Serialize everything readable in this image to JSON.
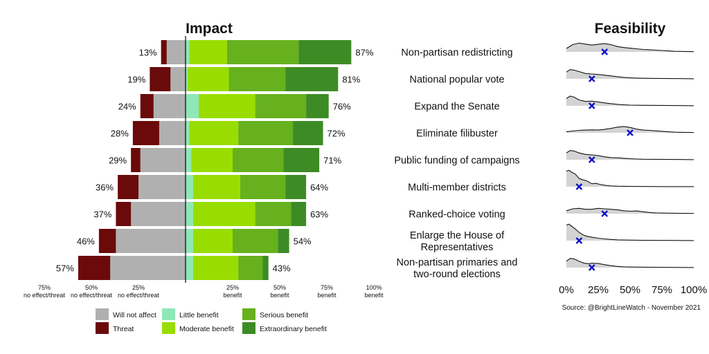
{
  "chart_data": {
    "type": "bar",
    "impact_title": "Impact",
    "feasibility_title": "Feasibility",
    "source": "Source: @BrightLineWatch - November 2021",
    "categories": [
      "Non-partisan redistricting",
      "National popular vote",
      "Expand the Senate",
      "Eliminate filibuster",
      "Public funding of campaigns",
      "Multi-member districts",
      "Ranked-choice voting",
      "Enlarge the House of Representatives",
      "Non-partisan primaries and two-round elections"
    ],
    "category_lines": [
      [
        "Non-partisan redistricting"
      ],
      [
        "National popular vote"
      ],
      [
        "Expand the Senate"
      ],
      [
        "Eliminate filibuster"
      ],
      [
        "Public funding of campaigns"
      ],
      [
        "Multi-member districts"
      ],
      [
        "Ranked-choice voting"
      ],
      [
        "Enlarge the House of",
        "Representatives"
      ],
      [
        "Non-partisan primaries and",
        "two-round elections"
      ]
    ],
    "left_series": [
      {
        "name": "Will not affect",
        "color": "#b0b0b0",
        "values": [
          10,
          8,
          17,
          14,
          24,
          25,
          29,
          37,
          40
        ]
      },
      {
        "name": "Threat",
        "color": "#6b0a0a",
        "values": [
          3,
          11,
          7,
          14,
          5,
          11,
          8,
          9,
          17
        ]
      }
    ],
    "right_series": [
      {
        "name": "Little benefit",
        "color": "#8ee8b8",
        "values": [
          2,
          1,
          7,
          2,
          3,
          4,
          4,
          4,
          4
        ]
      },
      {
        "name": "Moderate benefit",
        "color": "#99dd00",
        "values": [
          20,
          22,
          30,
          26,
          22,
          25,
          33,
          21,
          24
        ]
      },
      {
        "name": "Serious benefit",
        "color": "#66b11d",
        "values": [
          38,
          30,
          27,
          29,
          27,
          24,
          19,
          24,
          13
        ]
      },
      {
        "name": "Extraordinary benefit",
        "color": "#3d8b25",
        "values": [
          28,
          28,
          12,
          16,
          19,
          11,
          8,
          6,
          3
        ]
      }
    ],
    "threat_totals": [
      "13%",
      "19%",
      "24%",
      "28%",
      "29%",
      "36%",
      "37%",
      "46%",
      "57%"
    ],
    "benefit_totals": [
      "87%",
      "81%",
      "76%",
      "72%",
      "71%",
      "64%",
      "63%",
      "54%",
      "43%"
    ],
    "impact_axis": {
      "xlim": [
        -75,
        100
      ],
      "ticks": [
        {
          "value": -75,
          "line1": "75%",
          "line2": "no effect/threat"
        },
        {
          "value": -50,
          "line1": "50%",
          "line2": "no effect/threat"
        },
        {
          "value": -25,
          "line1": "25%",
          "line2": "no effect/threat"
        },
        {
          "value": 25,
          "line1": "25%",
          "line2": "benefit"
        },
        {
          "value": 50,
          "line1": "50%",
          "line2": "benefit"
        },
        {
          "value": 75,
          "line1": "75%",
          "line2": "benefit"
        },
        {
          "value": 100,
          "line1": "100%",
          "line2": "benefit"
        }
      ]
    },
    "feasibility_axis": {
      "xlim": [
        0,
        100
      ],
      "ticks": [
        "0%",
        "25%",
        "50%",
        "75%",
        "100%"
      ],
      "tick_values": [
        0,
        25,
        50,
        75,
        100
      ]
    },
    "feasibility_means": [
      30,
      20,
      20,
      50,
      20,
      10,
      30,
      10,
      20
    ],
    "feasibility_densities": [
      [
        [
          0,
          0.35
        ],
        [
          5,
          0.75
        ],
        [
          10,
          0.9
        ],
        [
          15,
          0.8
        ],
        [
          20,
          0.7
        ],
        [
          25,
          0.78
        ],
        [
          30,
          0.85
        ],
        [
          35,
          0.75
        ],
        [
          40,
          0.55
        ],
        [
          45,
          0.45
        ],
        [
          50,
          0.38
        ],
        [
          55,
          0.32
        ],
        [
          60,
          0.25
        ],
        [
          65,
          0.22
        ],
        [
          70,
          0.18
        ],
        [
          75,
          0.14
        ],
        [
          80,
          0.1
        ],
        [
          85,
          0.06
        ],
        [
          90,
          0.04
        ],
        [
          95,
          0.03
        ],
        [
          100,
          0.02
        ]
      ],
      [
        [
          0,
          0.7
        ],
        [
          3,
          0.95
        ],
        [
          6,
          0.9
        ],
        [
          10,
          0.75
        ],
        [
          15,
          0.55
        ],
        [
          20,
          0.5
        ],
        [
          25,
          0.45
        ],
        [
          30,
          0.38
        ],
        [
          35,
          0.3
        ],
        [
          40,
          0.22
        ],
        [
          45,
          0.15
        ],
        [
          50,
          0.1
        ],
        [
          55,
          0.08
        ],
        [
          60,
          0.06
        ],
        [
          70,
          0.04
        ],
        [
          80,
          0.03
        ],
        [
          90,
          0.02
        ],
        [
          100,
          0.01
        ]
      ],
      [
        [
          0,
          0.75
        ],
        [
          3,
          1.0
        ],
        [
          6,
          0.9
        ],
        [
          10,
          0.6
        ],
        [
          15,
          0.45
        ],
        [
          20,
          0.48
        ],
        [
          25,
          0.4
        ],
        [
          30,
          0.3
        ],
        [
          35,
          0.22
        ],
        [
          40,
          0.15
        ],
        [
          45,
          0.1
        ],
        [
          50,
          0.07
        ],
        [
          60,
          0.05
        ],
        [
          70,
          0.04
        ],
        [
          80,
          0.03
        ],
        [
          90,
          0.02
        ],
        [
          100,
          0.01
        ]
      ],
      [
        [
          0,
          0.1
        ],
        [
          5,
          0.18
        ],
        [
          10,
          0.25
        ],
        [
          15,
          0.28
        ],
        [
          20,
          0.3
        ],
        [
          25,
          0.28
        ],
        [
          30,
          0.35
        ],
        [
          35,
          0.45
        ],
        [
          40,
          0.58
        ],
        [
          45,
          0.65
        ],
        [
          50,
          0.55
        ],
        [
          55,
          0.38
        ],
        [
          60,
          0.28
        ],
        [
          65,
          0.25
        ],
        [
          70,
          0.2
        ],
        [
          75,
          0.15
        ],
        [
          80,
          0.1
        ],
        [
          85,
          0.06
        ],
        [
          90,
          0.04
        ],
        [
          95,
          0.03
        ],
        [
          100,
          0.02
        ]
      ],
      [
        [
          0,
          0.7
        ],
        [
          3,
          0.95
        ],
        [
          6,
          0.9
        ],
        [
          10,
          0.7
        ],
        [
          15,
          0.55
        ],
        [
          20,
          0.5
        ],
        [
          25,
          0.42
        ],
        [
          30,
          0.3
        ],
        [
          35,
          0.22
        ],
        [
          40,
          0.2
        ],
        [
          45,
          0.15
        ],
        [
          50,
          0.1
        ],
        [
          55,
          0.07
        ],
        [
          60,
          0.05
        ],
        [
          70,
          0.04
        ],
        [
          80,
          0.03
        ],
        [
          90,
          0.02
        ],
        [
          100,
          0.01
        ]
      ],
      [
        [
          0,
          1.6
        ],
        [
          2,
          1.7
        ],
        [
          4,
          1.5
        ],
        [
          7,
          1.3
        ],
        [
          10,
          0.85
        ],
        [
          13,
          0.7
        ],
        [
          15,
          0.65
        ],
        [
          18,
          0.45
        ],
        [
          20,
          0.3
        ],
        [
          23,
          0.35
        ],
        [
          26,
          0.25
        ],
        [
          30,
          0.15
        ],
        [
          35,
          0.08
        ],
        [
          40,
          0.05
        ],
        [
          50,
          0.03
        ],
        [
          60,
          0.02
        ],
        [
          80,
          0.01
        ],
        [
          100,
          0.01
        ]
      ],
      [
        [
          0,
          0.3
        ],
        [
          5,
          0.5
        ],
        [
          10,
          0.55
        ],
        [
          15,
          0.45
        ],
        [
          20,
          0.45
        ],
        [
          25,
          0.55
        ],
        [
          30,
          0.5
        ],
        [
          35,
          0.45
        ],
        [
          40,
          0.4
        ],
        [
          45,
          0.3
        ],
        [
          50,
          0.25
        ],
        [
          55,
          0.28
        ],
        [
          60,
          0.2
        ],
        [
          65,
          0.12
        ],
        [
          70,
          0.08
        ],
        [
          80,
          0.05
        ],
        [
          90,
          0.03
        ],
        [
          100,
          0.02
        ]
      ],
      [
        [
          0,
          1.6
        ],
        [
          2,
          1.7
        ],
        [
          4,
          1.5
        ],
        [
          7,
          1.2
        ],
        [
          10,
          0.85
        ],
        [
          13,
          0.6
        ],
        [
          16,
          0.45
        ],
        [
          20,
          0.35
        ],
        [
          25,
          0.25
        ],
        [
          30,
          0.18
        ],
        [
          35,
          0.12
        ],
        [
          40,
          0.08
        ],
        [
          50,
          0.05
        ],
        [
          60,
          0.03
        ],
        [
          80,
          0.02
        ],
        [
          100,
          0.01
        ]
      ],
      [
        [
          0,
          0.65
        ],
        [
          3,
          0.95
        ],
        [
          6,
          0.9
        ],
        [
          10,
          0.65
        ],
        [
          14,
          0.45
        ],
        [
          18,
          0.4
        ],
        [
          20,
          0.45
        ],
        [
          25,
          0.42
        ],
        [
          30,
          0.3
        ],
        [
          35,
          0.2
        ],
        [
          40,
          0.12
        ],
        [
          45,
          0.08
        ],
        [
          50,
          0.06
        ],
        [
          60,
          0.04
        ],
        [
          70,
          0.03
        ],
        [
          80,
          0.02
        ],
        [
          100,
          0.01
        ]
      ]
    ],
    "legend": [
      {
        "label": "Will not affect",
        "color": "#b0b0b0"
      },
      {
        "label": "Threat",
        "color": "#6b0a0a"
      },
      {
        "label": "Little benefit",
        "color": "#8ee8b8"
      },
      {
        "label": "Moderate benefit",
        "color": "#99dd00"
      },
      {
        "label": "Serious benefit",
        "color": "#66b11d"
      },
      {
        "label": "Extraordinary benefit",
        "color": "#3d8b25"
      }
    ],
    "mean_marker_color": "#1010cc",
    "density_fill_color": "#d3d3d3"
  }
}
